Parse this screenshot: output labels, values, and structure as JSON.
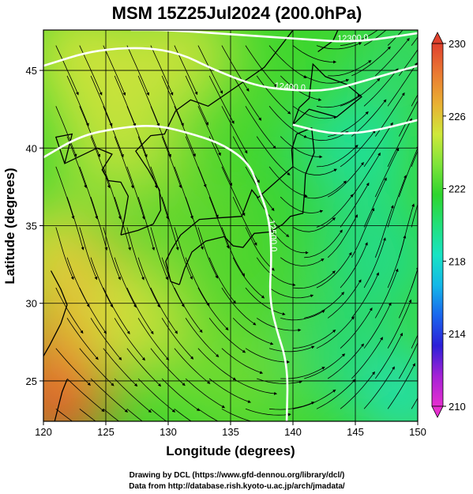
{
  "figure": {
    "title": "MSM 15Z25Jul2024 (200.0hPa)",
    "xlabel": "Longitude (degrees)",
    "ylabel": "Latitude  (degrees)",
    "credit_line1": "Drawing by DCL (https://www.gfd-dennou.org/library/dcl/)",
    "credit_line2": "Data from http://database.rish.kyoto-u.ac.jp/arch/jmadata/"
  },
  "chart_data": {
    "type": "heatmap",
    "xlim": [
      120,
      150
    ],
    "ylim": [
      22.4,
      47.6
    ],
    "xticks": [
      120,
      125,
      130,
      135,
      140,
      145,
      150
    ],
    "yticks": [
      25,
      30,
      35,
      40,
      45
    ],
    "xtick_labels": [
      "120",
      "125",
      "130",
      "135",
      "140",
      "145",
      "150"
    ],
    "ytick_labels": [
      "25",
      "30",
      "35",
      "40",
      "45"
    ],
    "grid": true,
    "colorbar": {
      "range": [
        210,
        230
      ],
      "tick_values": [
        210,
        214,
        218,
        222,
        226,
        230
      ],
      "tick_labels": [
        "210",
        "214",
        "218",
        "222",
        "226",
        "230"
      ],
      "colors": [
        "#e62fd0",
        "#a522d6",
        "#2c1fd8",
        "#1a66ee",
        "#14b7e8",
        "#18e4c4",
        "#22e07a",
        "#2ed52e",
        "#7fe43a",
        "#cfe83a",
        "#e9b033",
        "#ea7a32",
        "#e0412e"
      ]
    },
    "contours": [
      {
        "label": "12300.0",
        "points": [
          [
            127,
            47.6
          ],
          [
            130,
            47.6
          ],
          [
            135.5,
            47.3
          ],
          [
            141,
            47
          ],
          [
            145,
            46.8
          ],
          [
            150,
            47.4
          ]
        ]
      },
      {
        "label": "12400.0",
        "points": [
          [
            120,
            45.3
          ],
          [
            124,
            46.3
          ],
          [
            128,
            46.5
          ],
          [
            131,
            46.1
          ],
          [
            133.5,
            45.1
          ],
          [
            137,
            44
          ],
          [
            140,
            43.7
          ],
          [
            143,
            43.7
          ],
          [
            146,
            44.4
          ],
          [
            150,
            45.3
          ]
        ]
      },
      {
        "label": "12500.0",
        "points": [
          [
            120,
            39.4
          ],
          [
            123,
            40.8
          ],
          [
            126,
            41.3
          ],
          [
            129,
            41.5
          ],
          [
            132,
            40.9
          ],
          [
            134.5,
            40.2
          ],
          [
            136.5,
            39
          ],
          [
            137.2,
            37.5
          ],
          [
            138.1,
            35.5
          ],
          [
            138.3,
            33
          ],
          [
            138.1,
            30.5
          ],
          [
            138.6,
            28.5
          ],
          [
            139.6,
            26
          ],
          [
            139.5,
            22.4
          ]
        ]
      },
      {
        "label": "",
        "points": [
          [
            140,
            41.5
          ],
          [
            143,
            40.9
          ],
          [
            146,
            41
          ],
          [
            150,
            41.8
          ]
        ]
      }
    ]
  },
  "colors": {
    "frame": "#000000",
    "contour": "#ffffff",
    "streamline": "#000000",
    "coast": "#000000"
  }
}
